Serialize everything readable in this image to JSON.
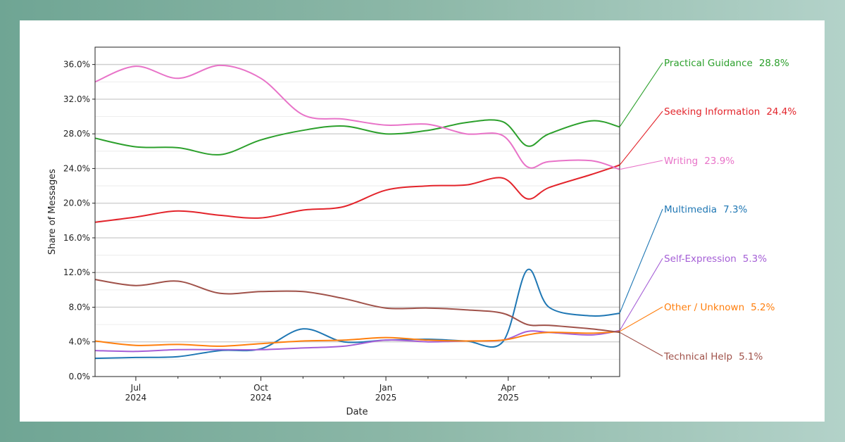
{
  "chart_data": {
    "type": "line",
    "title": "",
    "xlabel": "Date",
    "ylabel": "Share of Messages",
    "ylim": [
      0,
      38
    ],
    "xlim": [
      "2024-06-01",
      "2025-06-22"
    ],
    "y_ticks": [
      "0.0%",
      "4.0%",
      "8.0%",
      "12.0%",
      "16.0%",
      "20.0%",
      "24.0%",
      "28.0%",
      "32.0%",
      "36.0%"
    ],
    "x_ticks": [
      {
        "date": "2024-07-01",
        "line1": "Jul",
        "line2": "2024"
      },
      {
        "date": "2024-10-01",
        "line1": "Oct",
        "line2": "2024"
      },
      {
        "date": "2025-01-01",
        "line1": "Jan",
        "line2": "2025"
      },
      {
        "date": "2025-04-01",
        "line1": "Apr",
        "line2": "2025"
      }
    ],
    "grid": true,
    "legend": "end-of-line labels at right",
    "x": [
      "2024-06-01",
      "2024-07-01",
      "2024-08-01",
      "2024-09-01",
      "2024-10-01",
      "2024-11-01",
      "2024-12-01",
      "2025-01-01",
      "2025-02-01",
      "2025-03-01",
      "2025-03-28",
      "2025-04-15",
      "2025-05-01",
      "2025-06-01",
      "2025-06-22"
    ],
    "series": [
      {
        "name": "Practical Guidance",
        "end_label": "28.8%",
        "color": "#2ca02c",
        "values": [
          27.5,
          26.5,
          26.4,
          25.6,
          27.3,
          28.4,
          28.9,
          28.0,
          28.4,
          29.3,
          29.4,
          26.6,
          28.0,
          29.5,
          28.8
        ]
      },
      {
        "name": "Seeking Information",
        "end_label": "24.4%",
        "color": "#e3242b",
        "values": [
          17.8,
          18.4,
          19.1,
          18.6,
          18.3,
          19.2,
          19.6,
          21.5,
          22.0,
          22.1,
          22.9,
          20.5,
          21.8,
          23.3,
          24.4
        ]
      },
      {
        "name": "Writing",
        "end_label": "23.9%",
        "color": "#e873c8",
        "values": [
          34.0,
          35.8,
          34.4,
          35.9,
          34.4,
          30.2,
          29.7,
          29.0,
          29.1,
          28.0,
          27.8,
          24.2,
          24.8,
          24.9,
          23.9
        ]
      },
      {
        "name": "Multimedia",
        "end_label": "7.3%",
        "color": "#1f77b4",
        "values": [
          2.1,
          2.2,
          2.3,
          3.0,
          3.2,
          5.5,
          4.0,
          4.2,
          4.3,
          4.1,
          4.0,
          12.3,
          8.0,
          7.0,
          7.3
        ]
      },
      {
        "name": "Self-Expression",
        "end_label": "5.3%",
        "color": "#a55fd6",
        "values": [
          3.0,
          2.9,
          3.1,
          3.1,
          3.1,
          3.3,
          3.5,
          4.2,
          4.0,
          4.1,
          4.2,
          5.2,
          5.1,
          4.8,
          5.3
        ]
      },
      {
        "name": "Other / Unknown",
        "end_label": "5.2%",
        "color": "#ff7f0e",
        "values": [
          4.1,
          3.6,
          3.7,
          3.5,
          3.8,
          4.1,
          4.2,
          4.5,
          4.2,
          4.1,
          4.2,
          4.8,
          5.1,
          5.0,
          5.2
        ]
      },
      {
        "name": "Technical Help",
        "end_label": "5.1%",
        "color": "#a0524a",
        "values": [
          11.2,
          10.5,
          11.0,
          9.6,
          9.8,
          9.8,
          9.0,
          7.9,
          7.9,
          7.7,
          7.3,
          6.0,
          5.9,
          5.5,
          5.1
        ]
      }
    ]
  }
}
